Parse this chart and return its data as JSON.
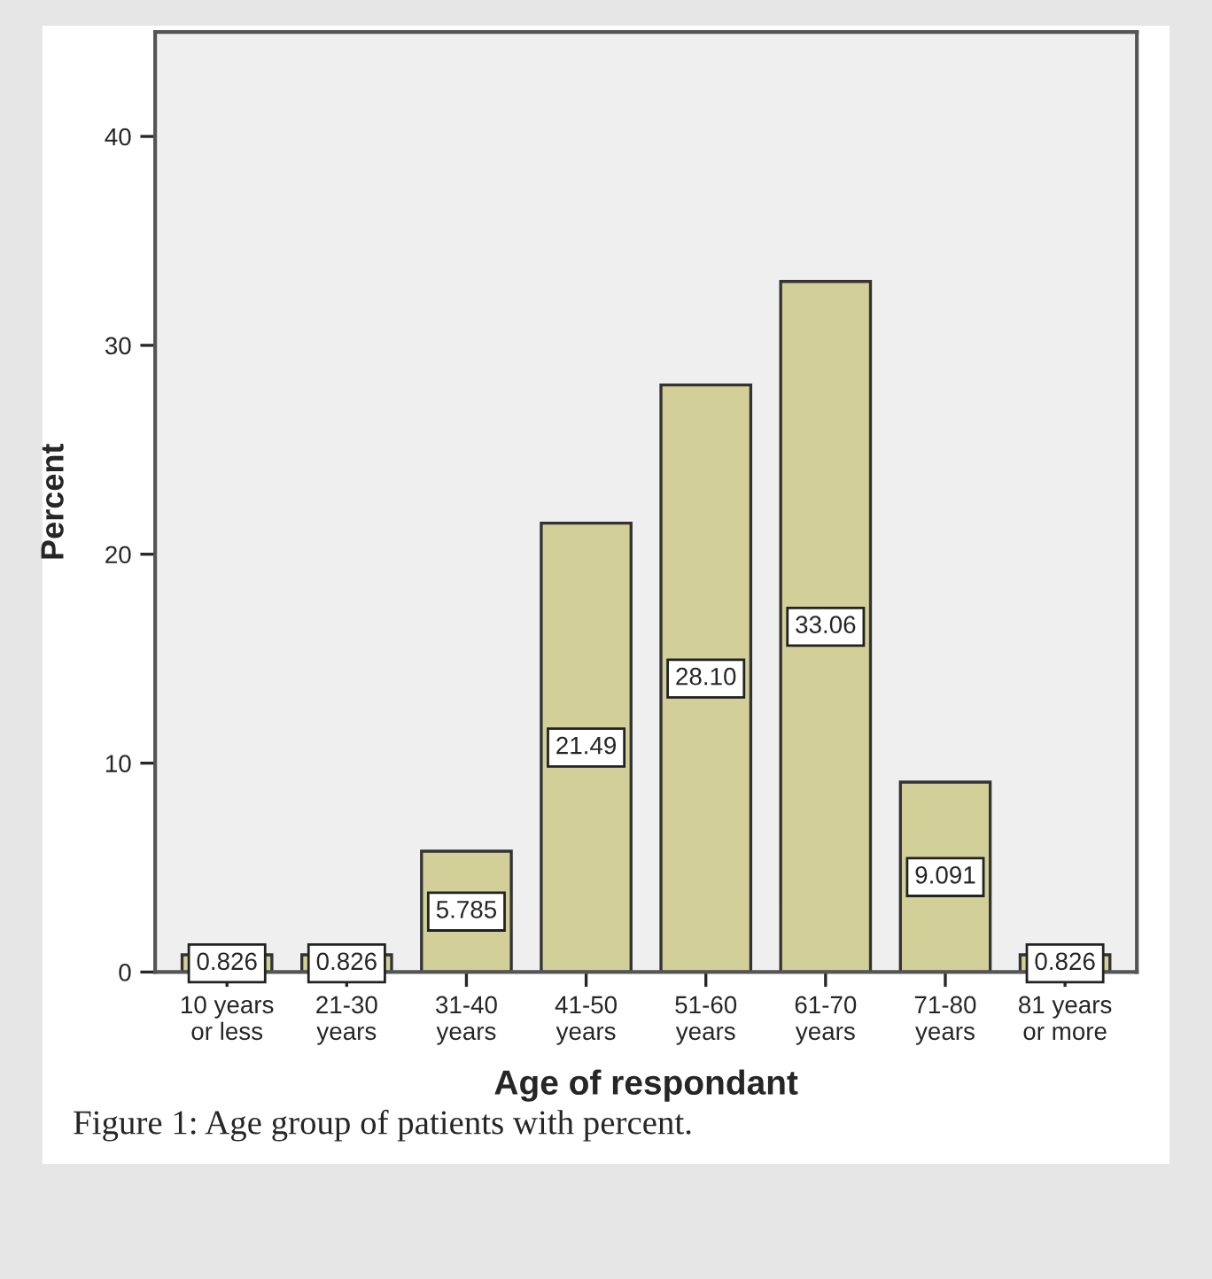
{
  "chart_data": {
    "type": "bar",
    "xlabel": "Age of respondant",
    "ylabel": "Percent",
    "categories": [
      "10 years\nor less",
      "21-30\nyears",
      "31-40\nyears",
      "41-50\nyears",
      "51-60\nyears",
      "61-70\nyears",
      "71-80\nyears",
      "81 years\nor more"
    ],
    "values": [
      0.826,
      0.826,
      5.785,
      21.49,
      28.1,
      33.06,
      9.091,
      0.826
    ],
    "value_labels": [
      "0.826",
      "0.826",
      "5.785",
      "21.49",
      "28.10",
      "33.06",
      "9.091",
      "0.826"
    ],
    "color": "#d3cf98",
    "ylim": [
      0,
      45
    ],
    "yticks": [
      0,
      10,
      20,
      30,
      40
    ],
    "grid": false,
    "legend": false,
    "annotations": [
      "Figure 1: Age group of patients with percent."
    ]
  }
}
